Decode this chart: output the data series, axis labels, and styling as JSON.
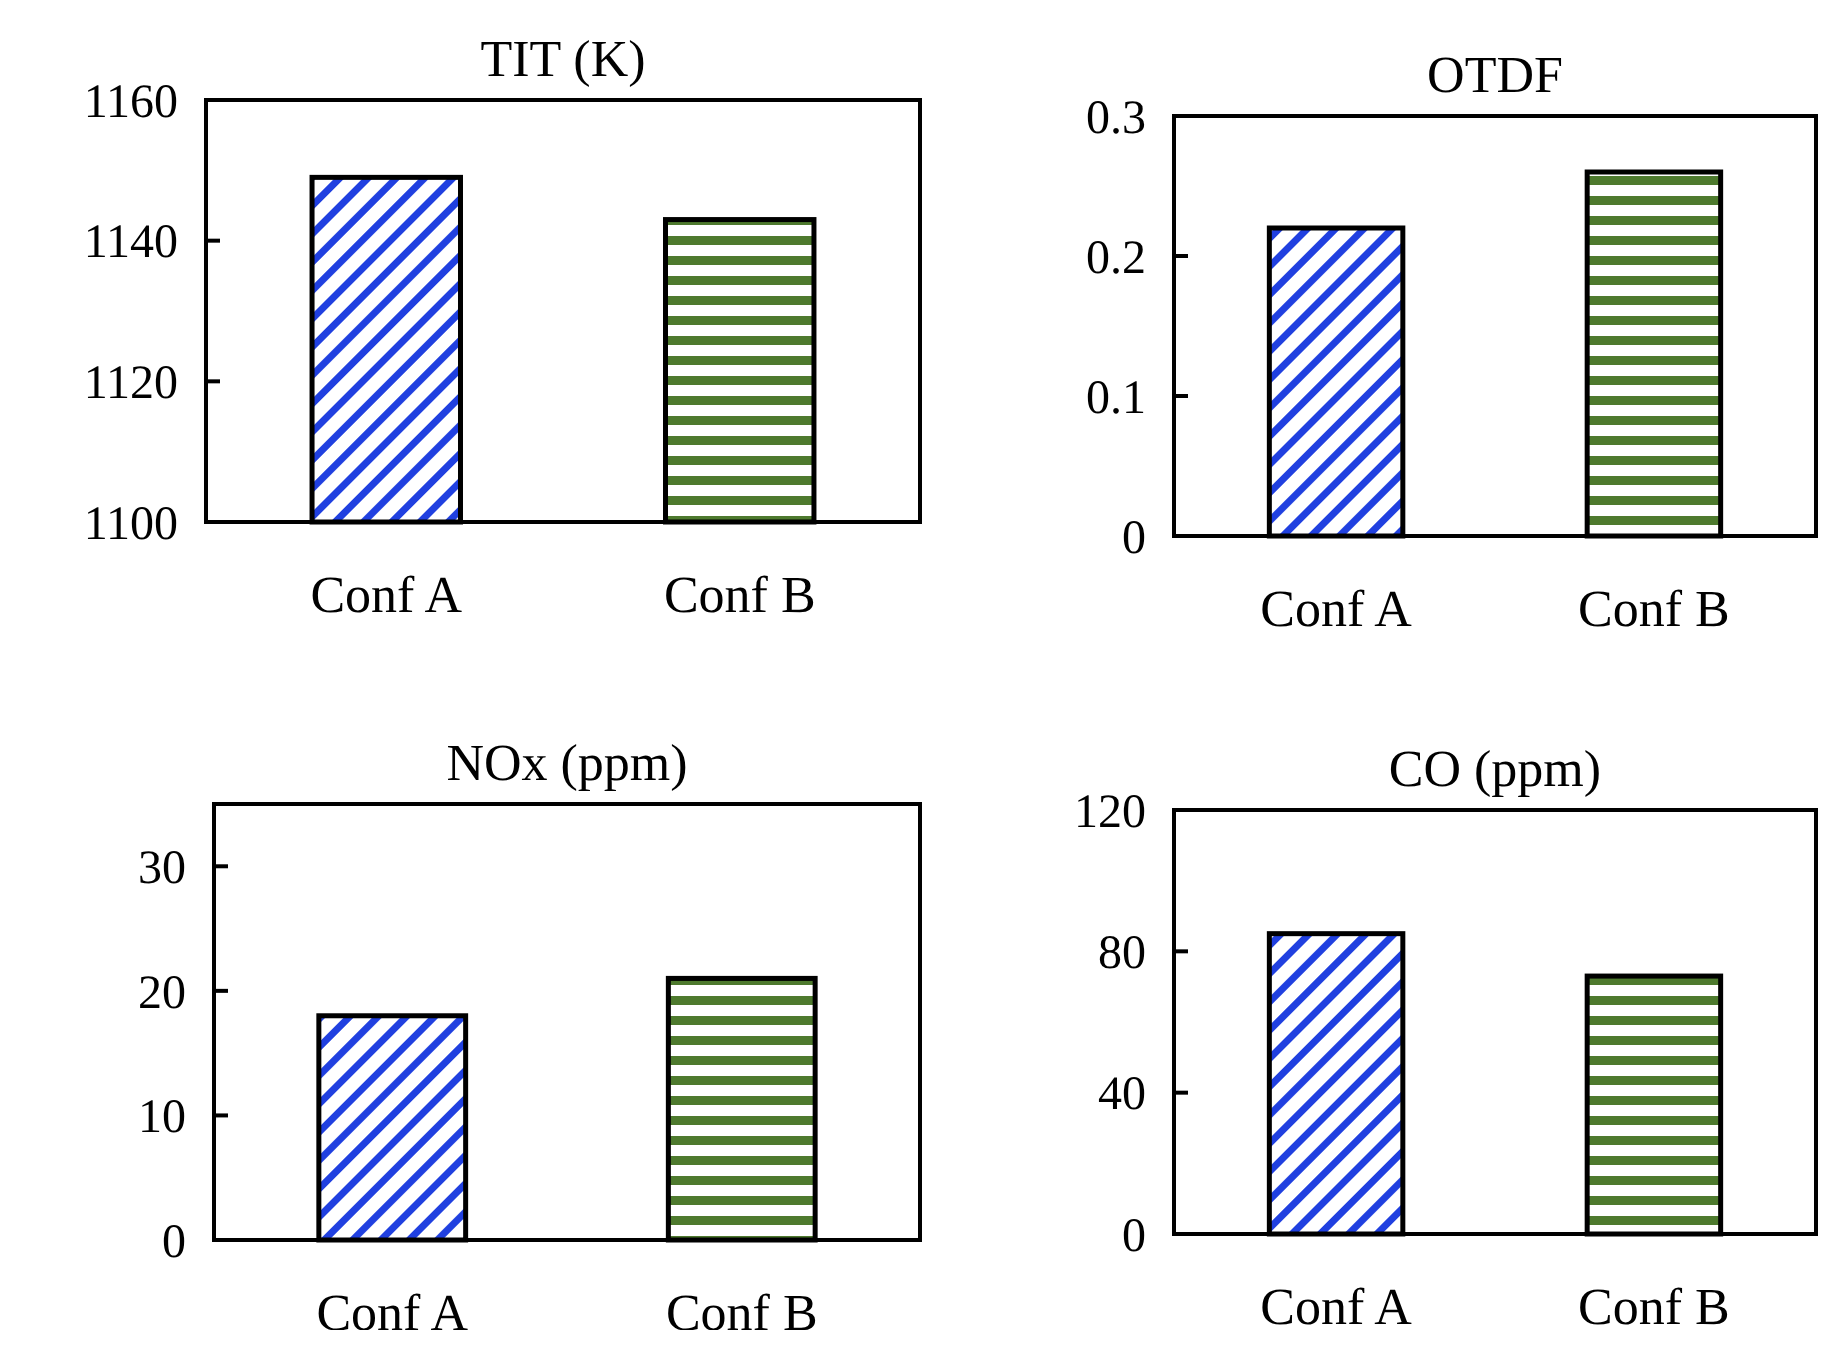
{
  "chart_data": [
    {
      "type": "bar",
      "title": "TIT (K)",
      "categories": [
        "Conf A",
        "Conf B"
      ],
      "values": [
        1149,
        1143
      ],
      "colors": [
        "#2040e0",
        "#4e7a2e"
      ],
      "ylim": [
        1100,
        1160
      ],
      "yticks": [
        1100,
        1120,
        1140,
        1160
      ]
    },
    {
      "type": "bar",
      "title": "OTDF",
      "categories": [
        "Conf A",
        "Conf B"
      ],
      "values": [
        0.22,
        0.26
      ],
      "colors": [
        "#2040e0",
        "#4e7a2e"
      ],
      "ylim": [
        0,
        0.3
      ],
      "yticks": [
        0,
        0.1,
        0.2,
        0.3
      ]
    },
    {
      "type": "bar",
      "title": "NOx (ppm)",
      "categories": [
        "Conf A",
        "Conf B"
      ],
      "values": [
        18,
        21
      ],
      "colors": [
        "#2040e0",
        "#4e7a2e"
      ],
      "ylim": [
        0,
        35
      ],
      "yticks": [
        0,
        10,
        20,
        30
      ]
    },
    {
      "type": "bar",
      "title": "CO (ppm)",
      "categories": [
        "Conf A",
        "Conf B"
      ],
      "values": [
        85,
        73
      ],
      "colors": [
        "#2040e0",
        "#4e7a2e"
      ],
      "ylim": [
        0,
        120
      ],
      "yticks": [
        0,
        40,
        80,
        120
      ]
    }
  ]
}
